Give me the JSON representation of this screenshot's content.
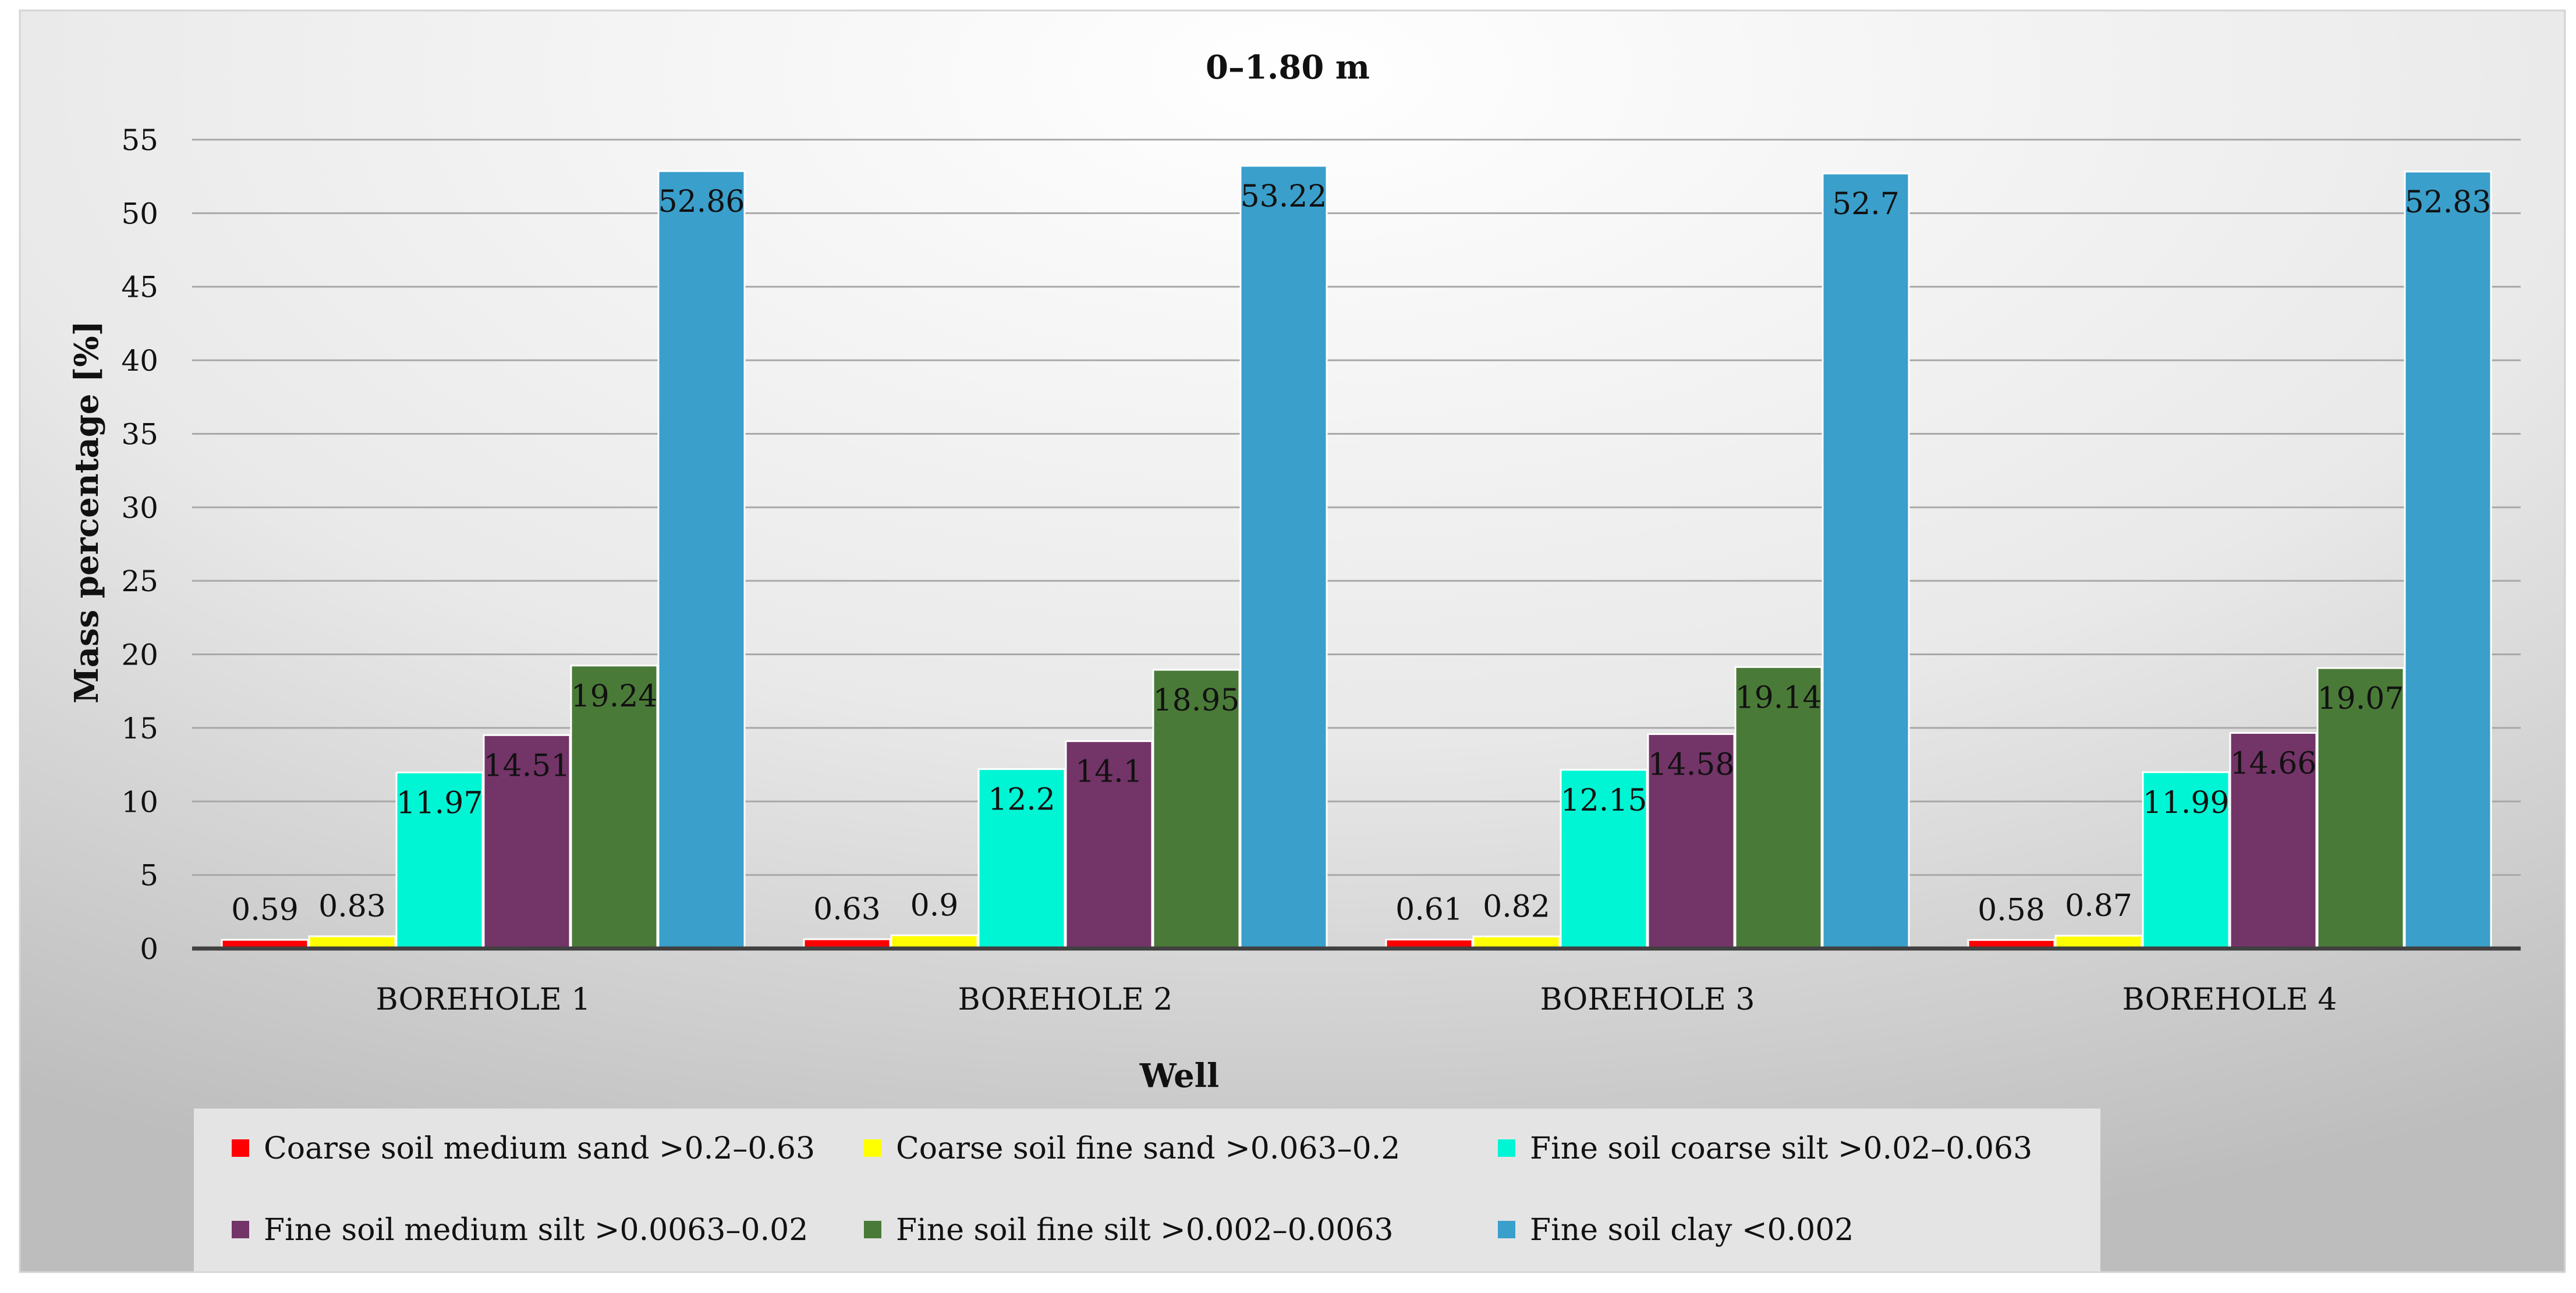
{
  "chart_data": {
    "type": "bar",
    "title": "0–1.80 m",
    "xlabel": "Well",
    "ylabel": "Mass percentage [%]",
    "ylim": [
      0,
      55
    ],
    "yticks": [
      0,
      5,
      10,
      15,
      20,
      25,
      30,
      35,
      40,
      45,
      50,
      55
    ],
    "grid": true,
    "legend_position": "bottom",
    "categories": [
      "BOREHOLE 1",
      "BOREHOLE 2",
      "BOREHOLE 3",
      "BOREHOLE 4"
    ],
    "series": [
      {
        "name": "Coarse soil medium sand >0.2–0.63",
        "color": "#ff0000",
        "values": [
          0.59,
          0.63,
          0.61,
          0.58
        ],
        "labels": [
          "0.59",
          "0.63",
          "0.61",
          "0.58"
        ]
      },
      {
        "name": "Coarse soil fine sand >0.063–0.2",
        "color": "#ffff00",
        "values": [
          0.83,
          0.9,
          0.82,
          0.87
        ],
        "labels": [
          "0.83",
          "0.9",
          "0.82",
          "0.87"
        ]
      },
      {
        "name": "Fine soil coarse silt >0.02–0.063",
        "color": "#00f5d4",
        "values": [
          11.97,
          12.2,
          12.15,
          11.99
        ],
        "labels": [
          "11.97",
          "12.2",
          "12.15",
          "11.99"
        ]
      },
      {
        "name": "Fine soil medium silt >0.0063–0.02",
        "color": "#733468",
        "values": [
          14.51,
          14.1,
          14.58,
          14.66
        ],
        "labels": [
          "14.51",
          "14.1",
          "14.58",
          "14.66"
        ]
      },
      {
        "name": "Fine soil fine silt >0.002–0.0063",
        "color": "#4a7a38",
        "values": [
          19.24,
          18.95,
          19.14,
          19.07
        ],
        "labels": [
          "19.24",
          "18.95",
          "19.14",
          "19.07"
        ]
      },
      {
        "name": "Fine soil clay <0.002",
        "color": "#3a9fcb",
        "values": [
          52.86,
          53.22,
          52.7,
          52.83
        ],
        "labels": [
          "52.86",
          "53.22",
          "52.7",
          "52.83"
        ]
      }
    ]
  }
}
